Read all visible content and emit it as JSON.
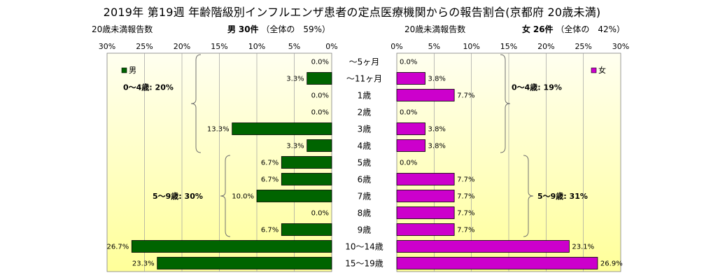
{
  "title": "2019年 第19週 年齢階級別インフルエンザ患者の定点医療機関からの報告割合(京都府 20歳未満)",
  "left_header": {
    "count_label": "20歳未満報告数",
    "sex": "男",
    "count": "30件",
    "share": "（全体の　59%）"
  },
  "right_header": {
    "count_label": "20歳未満報告数",
    "sex": "女",
    "count": "26件",
    "share": "（全体の　42%）"
  },
  "colors": {
    "male": "#006400",
    "female": "#cc00cc",
    "plot_bg_light": "#fffff0",
    "plot_bg_dark": "#ffff99"
  },
  "chart_data": [
    {
      "type": "bar",
      "orientation": "horizontal",
      "direction": "right-to-left",
      "legend": "男",
      "legend_position": "top-left",
      "xlim": [
        0,
        30
      ],
      "tick_labels": [
        "30%",
        "25%",
        "20%",
        "15%",
        "10%",
        "5%",
        "0%"
      ],
      "categories": [
        "～5ヶ月",
        "～11ヶ月",
        "1歳",
        "2歳",
        "3歳",
        "4歳",
        "5歳",
        "6歳",
        "7歳",
        "8歳",
        "9歳",
        "10～14歳",
        "15～19歳"
      ],
      "values": [
        0.0,
        3.3,
        0.0,
        0.0,
        13.3,
        3.3,
        6.7,
        6.7,
        10.0,
        0.0,
        6.7,
        26.7,
        23.3
      ],
      "value_labels": [
        "0.0%",
        "3.3%",
        "0.0%",
        "0.0%",
        "13.3%",
        "3.3%",
        "6.7%",
        "6.7%",
        "10.0%",
        "0.0%",
        "6.7%",
        "26.7%",
        "23.3%"
      ],
      "annotations": [
        "0～4歳: 20%",
        "5～9歳: 30%"
      ],
      "grid": true
    },
    {
      "type": "bar",
      "orientation": "horizontal",
      "direction": "left-to-right",
      "legend": "女",
      "legend_position": "top-right",
      "xlim": [
        0,
        30
      ],
      "tick_labels": [
        "0%",
        "5%",
        "10%",
        "15%",
        "20%",
        "25%",
        "30%"
      ],
      "categories": [
        "～5ヶ月",
        "～11ヶ月",
        "1歳",
        "2歳",
        "3歳",
        "4歳",
        "5歳",
        "6歳",
        "7歳",
        "8歳",
        "9歳",
        "10～14歳",
        "15～19歳"
      ],
      "values": [
        0.0,
        3.8,
        7.7,
        0.0,
        3.8,
        3.8,
        0.0,
        7.7,
        7.7,
        7.7,
        7.7,
        23.1,
        26.9
      ],
      "value_labels": [
        "0.0%",
        "3.8%",
        "7.7%",
        "0.0%",
        "3.8%",
        "3.8%",
        "0.0%",
        "7.7%",
        "7.7%",
        "7.7%",
        "7.7%",
        "23.1%",
        "26.9%"
      ],
      "annotations": [
        "0～4歳: 19%",
        "5～9歳: 31%"
      ],
      "grid": true
    }
  ]
}
